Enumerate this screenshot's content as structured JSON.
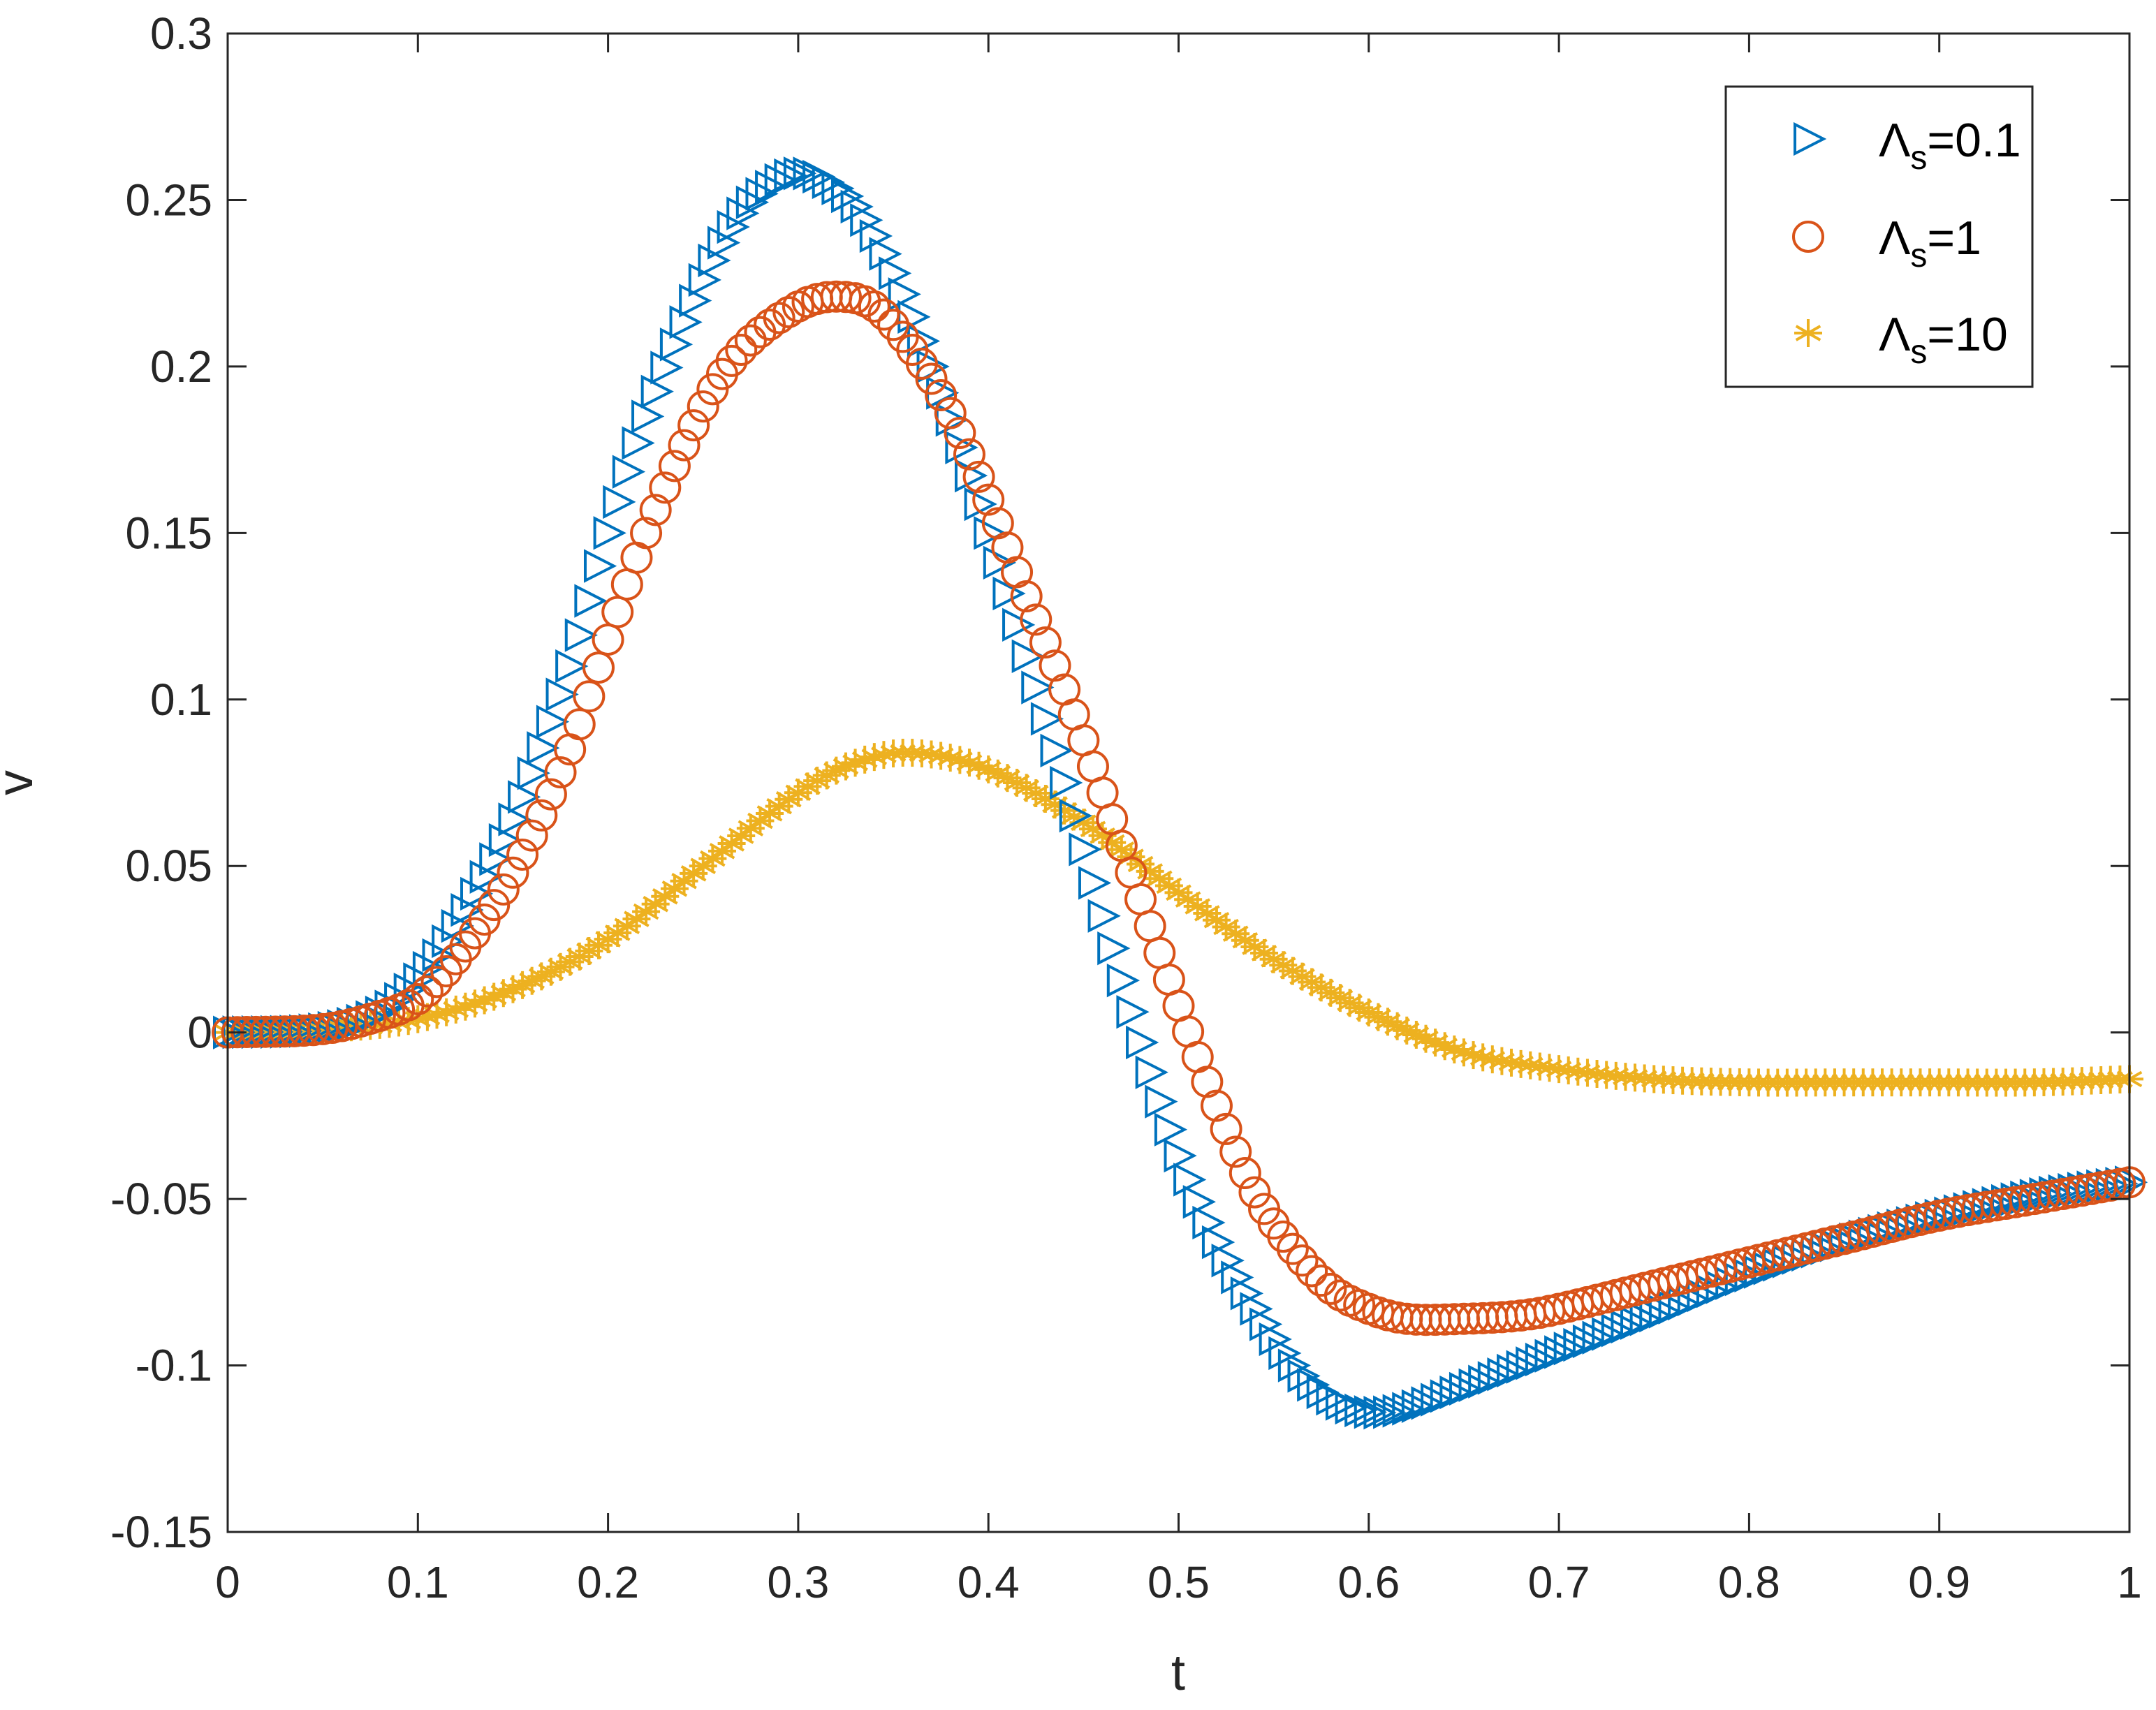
{
  "chart_data": {
    "type": "scatter",
    "title": "",
    "xlabel": "t",
    "ylabel": "v",
    "xlim": [
      0,
      1
    ],
    "ylim": [
      -0.15,
      0.3
    ],
    "xticks": [
      0,
      0.1,
      0.2,
      0.3,
      0.4,
      0.5,
      0.6,
      0.7,
      0.8,
      0.9,
      1
    ],
    "xtick_labels": [
      "0",
      "0.1",
      "0.2",
      "0.3",
      "0.4",
      "0.5",
      "0.6",
      "0.7",
      "0.8",
      "0.9",
      "1"
    ],
    "yticks": [
      -0.15,
      -0.1,
      -0.05,
      0,
      0.05,
      0.1,
      0.15,
      0.2,
      0.25,
      0.3
    ],
    "ytick_labels": [
      "-0.15",
      "-0.1",
      "-0.05",
      "0",
      "0.05",
      "0.1",
      "0.15",
      "0.2",
      "0.25",
      "0.3"
    ],
    "grid": false,
    "legend_position": "top-right",
    "series": [
      {
        "name": "Λs=0.1",
        "legend_main": "Λ",
        "legend_sub": "s",
        "legend_value": "=0.1",
        "marker": "triangle-right",
        "color": "#0072BD",
        "x": [
          0,
          0.05,
          0.08,
          0.1,
          0.12,
          0.15,
          0.18,
          0.2,
          0.22,
          0.25,
          0.27,
          0.29,
          0.3,
          0.31,
          0.33,
          0.35,
          0.37,
          0.4,
          0.42,
          0.44,
          0.46,
          0.48,
          0.5,
          0.52,
          0.54,
          0.56,
          0.58,
          0.6,
          0.62,
          0.65,
          0.7,
          0.75,
          0.8,
          0.85,
          0.9,
          0.95,
          1.0
        ],
        "values": [
          0,
          0.001,
          0.006,
          0.016,
          0.032,
          0.064,
          0.11,
          0.15,
          0.185,
          0.226,
          0.246,
          0.256,
          0.258,
          0.257,
          0.248,
          0.228,
          0.2,
          0.15,
          0.113,
          0.075,
          0.035,
          -0.003,
          -0.037,
          -0.063,
          -0.083,
          -0.1,
          -0.11,
          -0.114,
          -0.113,
          -0.107,
          -0.096,
          -0.085,
          -0.073,
          -0.063,
          -0.055,
          -0.049,
          -0.045
        ]
      },
      {
        "name": "Λs=1",
        "legend_main": "Λ",
        "legend_sub": "s",
        "legend_value": "=1",
        "marker": "circle",
        "color": "#D95319",
        "x": [
          0,
          0.05,
          0.08,
          0.1,
          0.12,
          0.15,
          0.18,
          0.2,
          0.22,
          0.25,
          0.27,
          0.3,
          0.32,
          0.34,
          0.36,
          0.38,
          0.4,
          0.42,
          0.44,
          0.46,
          0.48,
          0.5,
          0.52,
          0.54,
          0.56,
          0.58,
          0.6,
          0.62,
          0.65,
          0.68,
          0.7,
          0.75,
          0.8,
          0.85,
          0.9,
          0.95,
          1.0
        ],
        "values": [
          0,
          0.001,
          0.005,
          0.01,
          0.022,
          0.048,
          0.085,
          0.118,
          0.15,
          0.188,
          0.205,
          0.218,
          0.221,
          0.218,
          0.205,
          0.186,
          0.16,
          0.131,
          0.103,
          0.072,
          0.04,
          0.008,
          -0.022,
          -0.048,
          -0.065,
          -0.077,
          -0.083,
          -0.086,
          -0.086,
          -0.085,
          -0.083,
          -0.076,
          -0.069,
          -0.062,
          -0.055,
          -0.05,
          -0.045
        ]
      },
      {
        "name": "Λs=10",
        "legend_main": "Λ",
        "legend_sub": "s",
        "legend_value": "=10",
        "marker": "asterisk",
        "color": "#EDB120",
        "x": [
          0,
          0.05,
          0.1,
          0.15,
          0.2,
          0.25,
          0.3,
          0.33,
          0.36,
          0.4,
          0.45,
          0.5,
          0.55,
          0.6,
          0.65,
          0.7,
          0.75,
          0.8,
          0.85,
          0.9,
          0.95,
          1.0
        ],
        "values": [
          0,
          0.001,
          0.004,
          0.013,
          0.028,
          0.05,
          0.072,
          0.081,
          0.084,
          0.079,
          0.063,
          0.042,
          0.022,
          0.006,
          -0.006,
          -0.011,
          -0.014,
          -0.015,
          -0.015,
          -0.015,
          -0.015,
          -0.014
        ]
      }
    ]
  }
}
